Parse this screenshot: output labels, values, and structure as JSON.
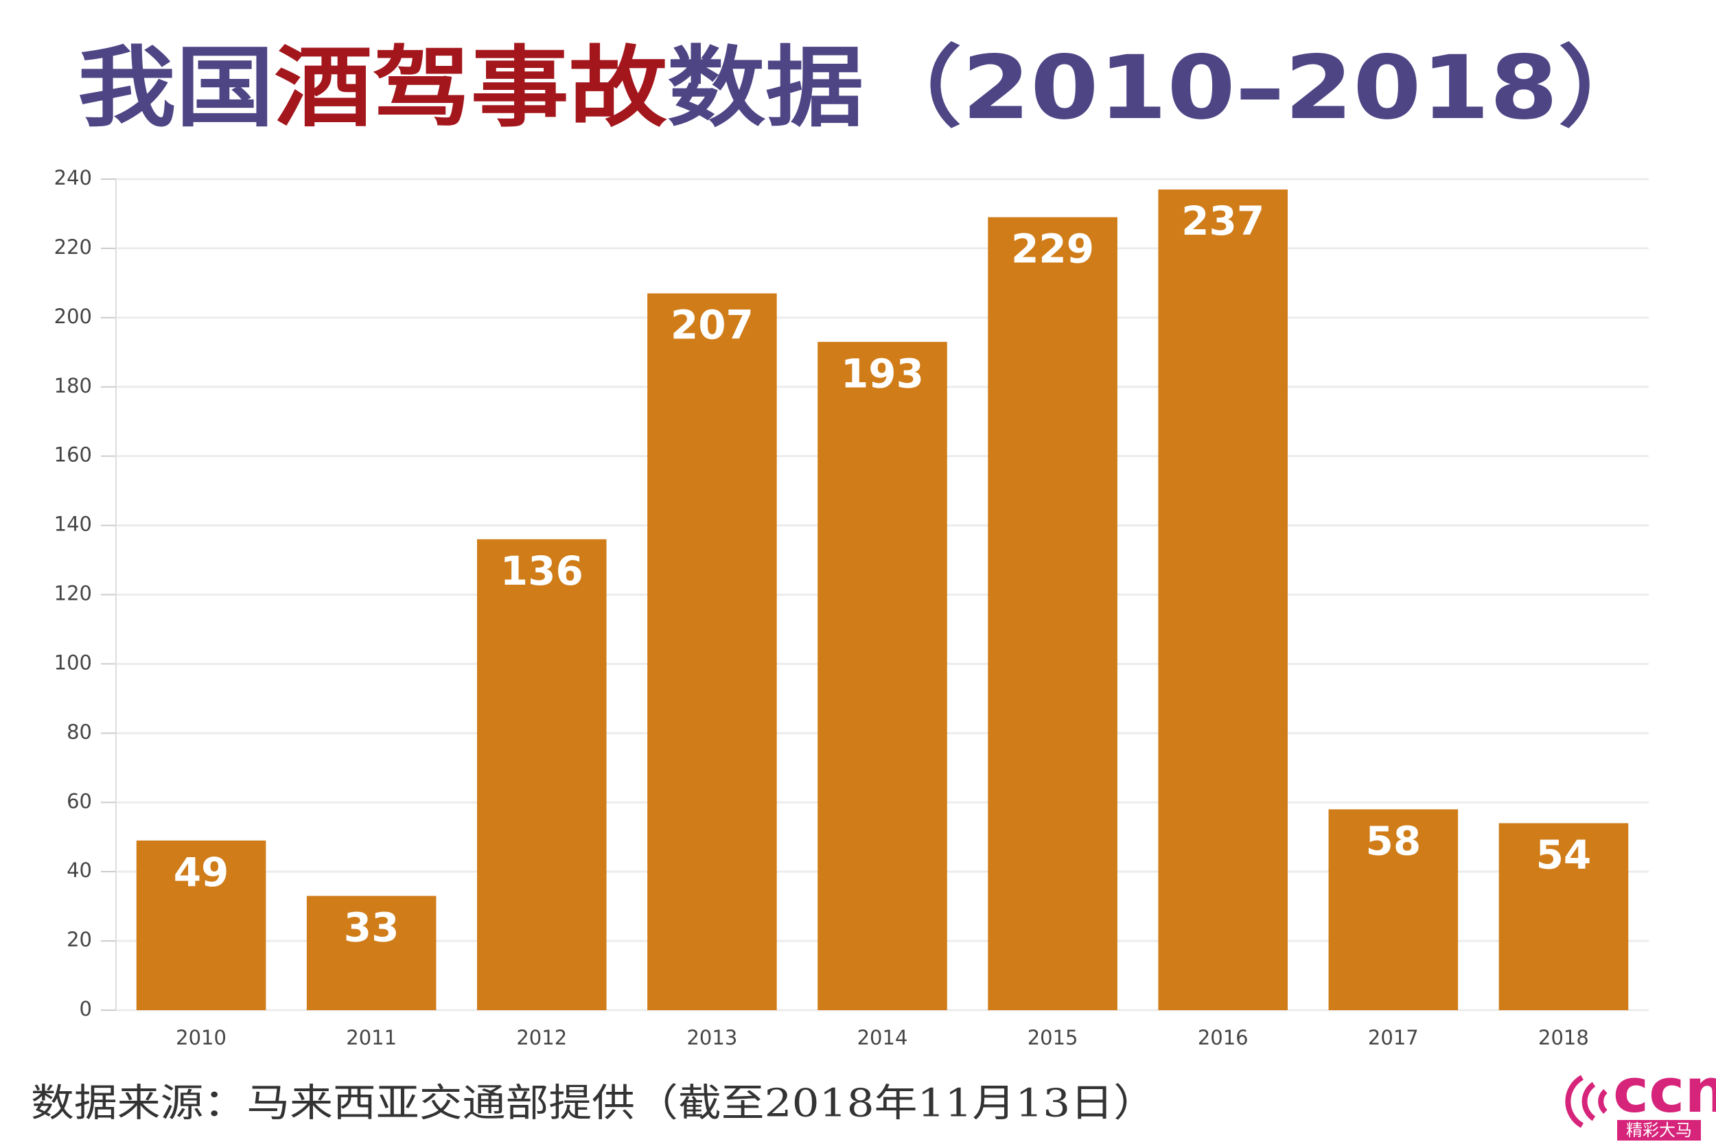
{
  "chart_data": {
    "type": "bar",
    "title_parts": [
      {
        "text": "我国",
        "color": "#4e4585"
      },
      {
        "text": "酒驾事故",
        "color": "#a3161c"
      },
      {
        "text": "数据（2010–2018）",
        "color": "#4e4585"
      }
    ],
    "categories": [
      "2010",
      "2011",
      "2012",
      "2013",
      "2014",
      "2015",
      "2016",
      "2017",
      "2018"
    ],
    "values": [
      49,
      33,
      136,
      207,
      193,
      229,
      237,
      58,
      54
    ],
    "color": "#cf7c19",
    "ylim": [
      0,
      240
    ],
    "yticks": [
      0,
      20,
      40,
      60,
      80,
      100,
      120,
      140,
      160,
      180,
      200,
      220,
      240
    ],
    "grid": true,
    "source": "数据来源：马来西亚交通部提供（截至2018年11月13日）",
    "logo": {
      "name": "ccn",
      "tagline": "精彩大马"
    }
  }
}
